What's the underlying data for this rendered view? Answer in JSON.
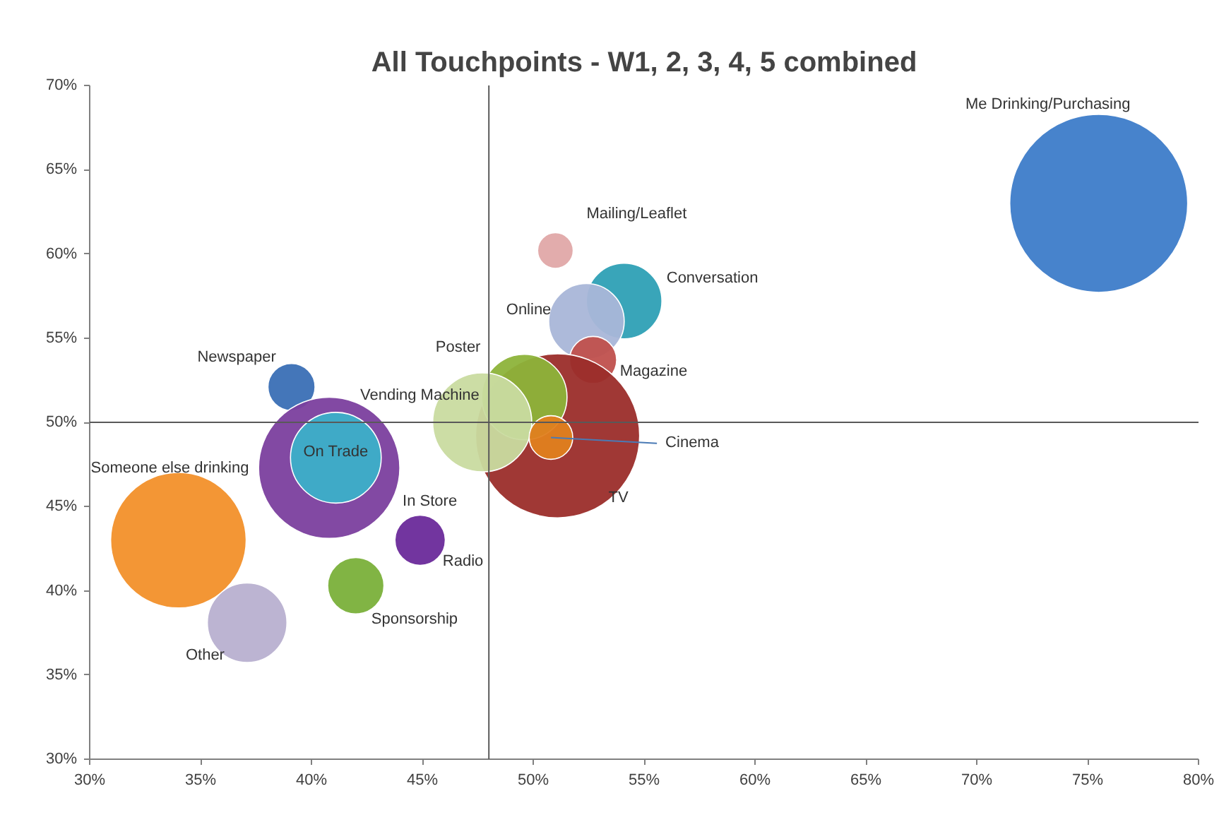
{
  "chart_data": {
    "type": "bubble",
    "title": "All Touchpoints - W1, 2, 3, 4, 5 combined",
    "series": [
      {
        "name": "Me Drinking/Purchasing",
        "color": "#3d7cc9",
        "x": [
          75.5
        ],
        "values": [
          63.0
        ],
        "sizes": [
          1
        ]
      },
      {
        "name": "Mailing/Leaflet",
        "color": "#e0a8a8",
        "x": [
          51.0
        ],
        "values": [
          60.2
        ],
        "sizes": [
          0.04
        ]
      },
      {
        "name": "Conversation",
        "color": "#2ea0b5",
        "x": [
          54.1
        ],
        "values": [
          57.2
        ],
        "sizes": [
          0.18
        ]
      },
      {
        "name": "Online",
        "color": "#a9b6d8",
        "x": [
          52.4
        ],
        "values": [
          56.0
        ],
        "sizes": [
          0.18
        ]
      },
      {
        "name": "Magazine",
        "color": "#c0504d",
        "x": [
          52.7
        ],
        "values": [
          53.7
        ],
        "sizes": [
          0.07
        ]
      },
      {
        "name": "TV",
        "color": "#9b2d2a",
        "x": [
          51.1
        ],
        "values": [
          49.2
        ],
        "sizes": [
          0.85
        ]
      },
      {
        "name": "Poster",
        "color": "#8db33a",
        "x": [
          49.6
        ],
        "values": [
          51.5
        ],
        "sizes": [
          0.23
        ]
      },
      {
        "name": "Vending Machine",
        "color": "#c9dba0",
        "x": [
          47.7
        ],
        "values": [
          50.0
        ],
        "sizes": [
          0.31
        ]
      },
      {
        "name": "Cinema",
        "color": "#e0801f",
        "x": [
          50.8
        ],
        "values": [
          49.1
        ],
        "sizes": [
          0.06
        ]
      },
      {
        "name": "Newspaper",
        "color": "#3a6fb5",
        "x": [
          39.1
        ],
        "values": [
          52.1
        ],
        "sizes": [
          0.07
        ]
      },
      {
        "name": "In Store",
        "color": "#7b3f9e",
        "x": [
          40.8
        ],
        "values": [
          47.3
        ],
        "sizes": [
          0.63
        ]
      },
      {
        "name": "On Trade",
        "color": "#3bb0c9",
        "x": [
          41.1
        ],
        "values": [
          47.9
        ],
        "sizes": [
          0.26
        ]
      },
      {
        "name": "Radio",
        "color": "#6a2a9a",
        "x": [
          44.9
        ],
        "values": [
          43.0
        ],
        "sizes": [
          0.08
        ]
      },
      {
        "name": "Sponsorship",
        "color": "#7ab03a",
        "x": [
          42.0
        ],
        "values": [
          40.3
        ],
        "sizes": [
          0.1
        ]
      },
      {
        "name": "Someone else drinking",
        "color": "#f2902a",
        "x": [
          34.0
        ],
        "values": [
          43.0
        ],
        "sizes": [
          0.58
        ]
      },
      {
        "name": "Other",
        "color": "#b8b0d0",
        "x": [
          37.1
        ],
        "values": [
          38.1
        ],
        "sizes": [
          0.2
        ]
      }
    ],
    "xlim": [
      30,
      80
    ],
    "xticks": [
      {
        "value": 30,
        "label": "30%"
      },
      {
        "value": 35,
        "label": "35%"
      },
      {
        "value": 40,
        "label": "40%"
      },
      {
        "value": 45,
        "label": "45%"
      },
      {
        "value": 50,
        "label": "50%"
      },
      {
        "value": 55,
        "label": "55%"
      },
      {
        "value": 60,
        "label": "60%"
      },
      {
        "value": 65,
        "label": "65%"
      },
      {
        "value": 70,
        "label": "70%"
      },
      {
        "value": 75,
        "label": "75%"
      },
      {
        "value": 80,
        "label": "80%"
      }
    ],
    "ylim": [
      30,
      70
    ],
    "yticks": [
      {
        "value": 30,
        "label": "30%"
      },
      {
        "value": 35,
        "label": "35%"
      },
      {
        "value": 40,
        "label": "40%"
      },
      {
        "value": 45,
        "label": "45%"
      },
      {
        "value": 50,
        "label": "50%"
      },
      {
        "value": 55,
        "label": "55%"
      },
      {
        "value": 60,
        "label": "60%"
      },
      {
        "value": 65,
        "label": "65%"
      },
      {
        "value": 70,
        "label": "70%"
      }
    ],
    "ref_lines": [
      {
        "axis": "x",
        "value": 48,
        "color": "#595959"
      },
      {
        "axis": "y",
        "value": 50,
        "color": "#595959"
      }
    ]
  }
}
